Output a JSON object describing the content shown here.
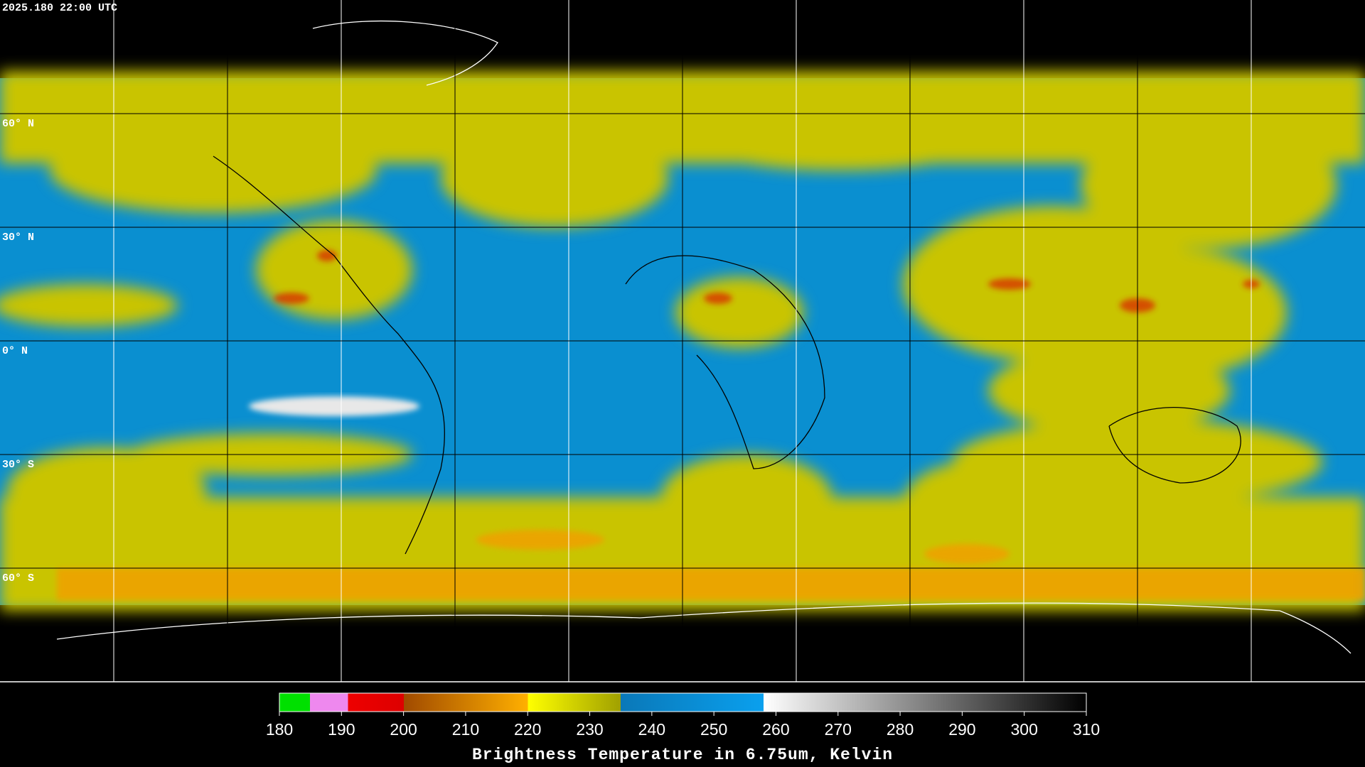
{
  "header": {
    "timestamp": "2025.180 22:00 UTC"
  },
  "map": {
    "lat_labels": [
      "60° N",
      "30° N",
      "0° N",
      "30° S",
      "60° S"
    ]
  },
  "colorbar": {
    "ticks": [
      180,
      190,
      200,
      210,
      220,
      230,
      240,
      250,
      260,
      270,
      280,
      290,
      300,
      310
    ],
    "title": "Brightness Temperature in 6.75um, Kelvin"
  }
}
